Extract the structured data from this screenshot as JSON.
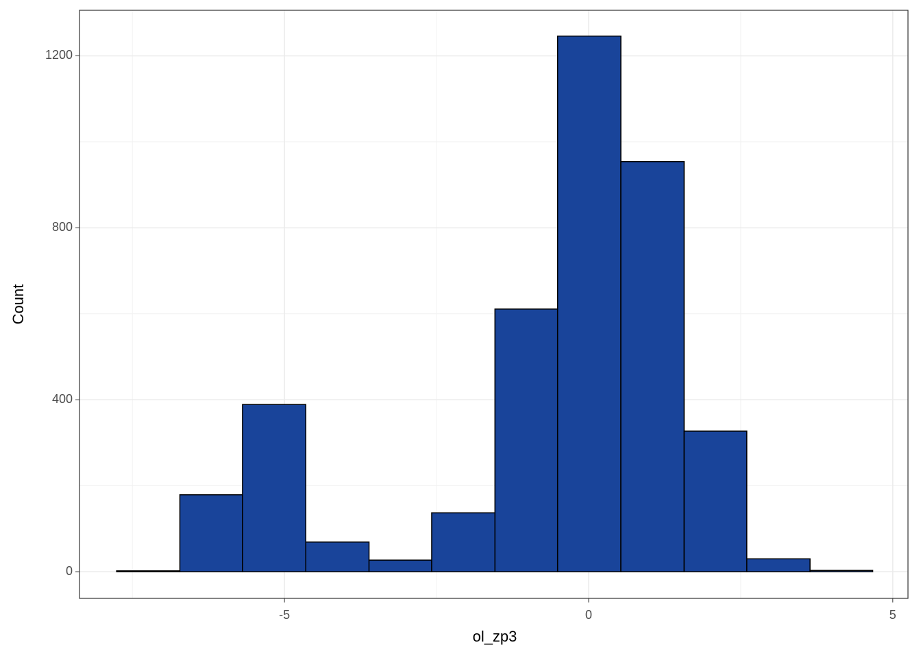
{
  "chart_data": {
    "type": "histogram",
    "x_label": "ol_zp3",
    "y_label": "Count",
    "bins": [
      -7.76,
      -6.72,
      -5.69,
      -4.65,
      -3.61,
      -2.58,
      -1.54,
      -0.51,
      0.53,
      1.57,
      2.6,
      3.64,
      4.67
    ],
    "values": [
      2,
      179,
      389,
      69,
      27,
      137,
      611,
      1246,
      954,
      327,
      30,
      3
    ],
    "color": "#19449a",
    "edge_color": "#000000",
    "xlim": [
      -8.37,
      5.25
    ],
    "ylim": [
      -62,
      1306
    ],
    "xticks": [
      -5,
      0,
      5
    ],
    "yticks": [
      0,
      400,
      800,
      1200
    ],
    "minor_xticks": [
      -7.5,
      -2.5,
      2.5
    ],
    "minor_yticks": [
      200,
      600,
      1000
    ],
    "grid": true
  }
}
